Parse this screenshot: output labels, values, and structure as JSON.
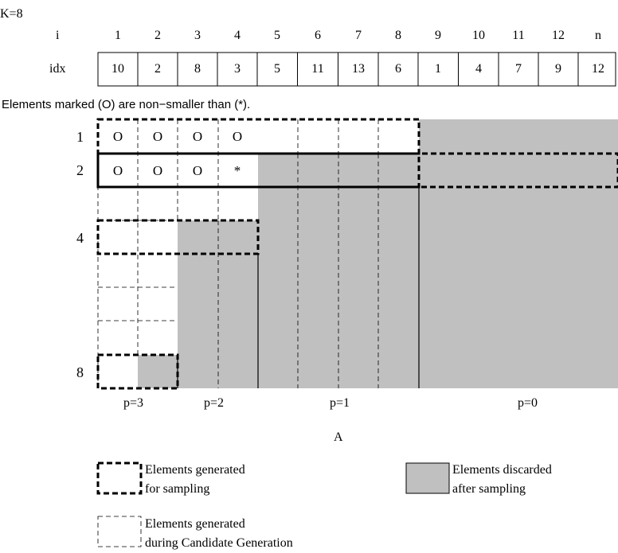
{
  "k_label": "K=8",
  "table": {
    "row_i_label": "i",
    "row_idx_label": "idx",
    "i_values": [
      "1",
      "2",
      "3",
      "4",
      "5",
      "6",
      "7",
      "8",
      "9",
      "10",
      "11",
      "12",
      "n"
    ],
    "idx_values": [
      "10",
      "2",
      "8",
      "3",
      "5",
      "11",
      "13",
      "6",
      "1",
      "4",
      "7",
      "9",
      "12"
    ]
  },
  "note": "Elements marked (O) are non−smaller than (*).",
  "grid": {
    "row_labels": [
      "1",
      "2",
      "4",
      "8"
    ],
    "row1_marks": [
      "O",
      "O",
      "O",
      "O"
    ],
    "row2_marks": [
      "O",
      "O",
      "O",
      "*"
    ],
    "partition_labels": [
      "p=3",
      "p=2",
      "p=1",
      "p=0"
    ],
    "axis_label": "A"
  },
  "legend": {
    "thick_dashed_line1": "Elements generated",
    "thick_dashed_line2": "for sampling",
    "gray_line1": "Elements discarded",
    "gray_line2": "after sampling",
    "thin_dashed_line1": "Elements generated",
    "thin_dashed_line2": "during Candidate Generation"
  },
  "colors": {
    "discarded_fill": "#c0c0c0",
    "line": "#000000"
  }
}
